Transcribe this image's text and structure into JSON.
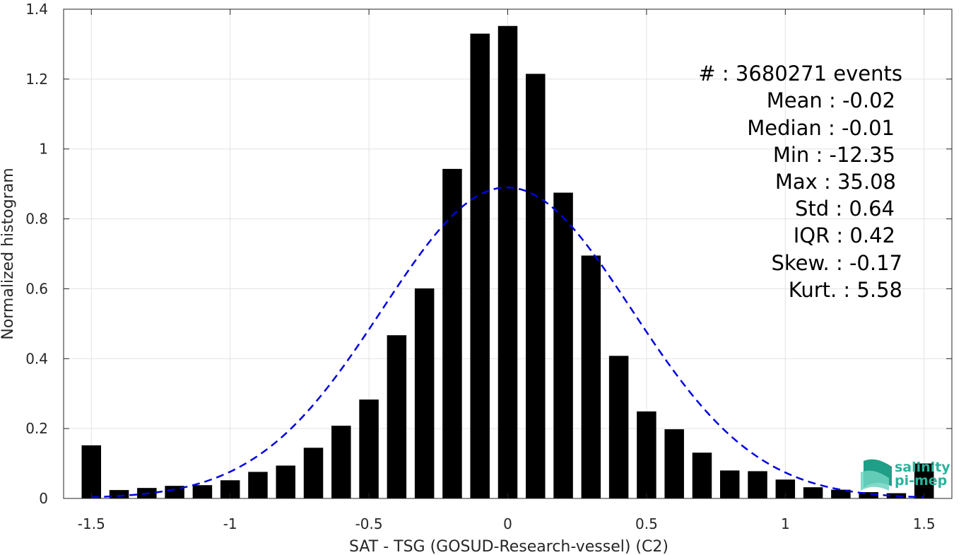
{
  "chart_data": {
    "type": "bar",
    "xlabel": "SAT - TSG (GOSUD-Research-vessel) (C2)",
    "ylabel": "Normalized histogram",
    "xlim": [
      -1.6,
      1.6
    ],
    "ylim": [
      0,
      1.4
    ],
    "grid": true,
    "bar_width": 0.07,
    "x_ticks": [
      -1.5,
      -1,
      -0.5,
      0,
      0.5,
      1,
      1.5
    ],
    "x_tick_labels": [
      "-1.5",
      "-1",
      "-0.5",
      "0",
      "0.5",
      "1",
      "1.5"
    ],
    "y_ticks": [
      0,
      0.2,
      0.4,
      0.6,
      0.8,
      1,
      1.2,
      1.4
    ],
    "y_tick_labels": [
      "0",
      "0.2",
      "0.4",
      "0.6",
      "0.8",
      "1",
      "1.2",
      "1.4"
    ],
    "x": [
      -1.5,
      -1.4,
      -1.3,
      -1.2,
      -1.1,
      -1.0,
      -0.9,
      -0.8,
      -0.7,
      -0.6,
      -0.5,
      -0.4,
      -0.3,
      -0.2,
      -0.1,
      0.0,
      0.1,
      0.2,
      0.3,
      0.4,
      0.5,
      0.6,
      0.7,
      0.8,
      0.9,
      1.0,
      1.1,
      1.2,
      1.3,
      1.4,
      1.5
    ],
    "values": [
      0.152,
      0.024,
      0.03,
      0.036,
      0.038,
      0.052,
      0.076,
      0.094,
      0.145,
      0.208,
      0.283,
      0.467,
      0.601,
      0.943,
      1.33,
      1.352,
      1.215,
      0.875,
      0.695,
      0.408,
      0.249,
      0.198,
      0.131,
      0.08,
      0.078,
      0.054,
      0.032,
      0.025,
      0.018,
      0.015,
      0.1
    ],
    "fit_curve": {
      "style": "dashed",
      "color": "#0000e0",
      "mean": -0.003,
      "std": 0.45,
      "peak": 0.89,
      "x_range": [
        -1.5,
        1.5
      ]
    },
    "bar_color": "#000000",
    "stats": {
      "events": "#  : 3680271 events",
      "mean": "Mean : -0.02",
      "median": "Median : -0.01",
      "min": "Min : -12.35",
      "max": "Max : 35.08",
      "std": "Std : 0.64",
      "iqr": "IQR : 0.42",
      "skew": "Skew. : -0.17",
      "kurt": "Kurt. : 5.58"
    }
  },
  "logo": {
    "line1": "salinity",
    "line2": "pi-mep",
    "color": "#2bb39b"
  }
}
